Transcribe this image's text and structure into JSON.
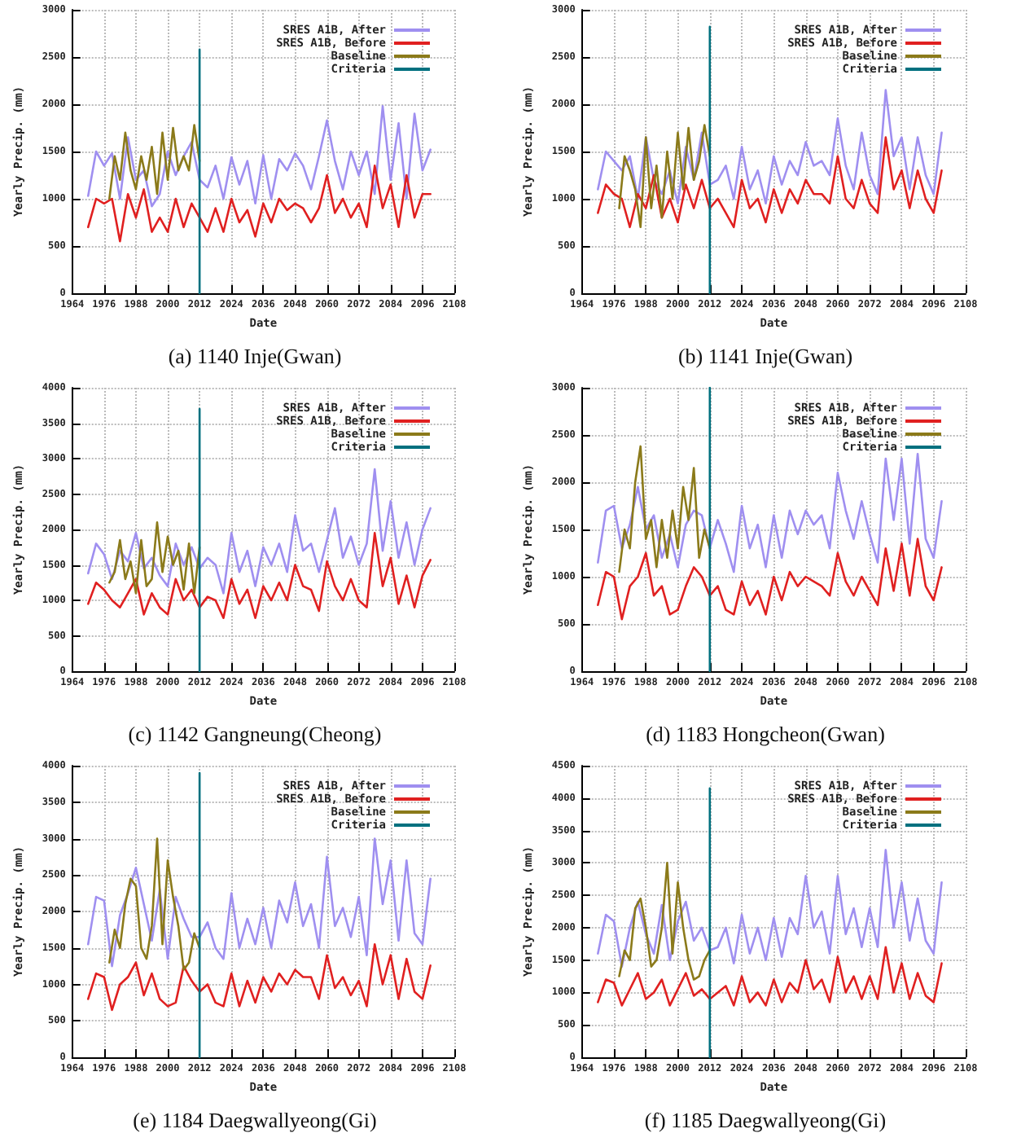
{
  "chart_data": [
    {
      "type": "line",
      "title": "(a) 1140 Inje(Gwan)",
      "xlabel": "Date",
      "ylabel": "Yearly Precip. (mm)",
      "xlim": [
        1964,
        2108
      ],
      "xticks": [
        1964,
        1976,
        1988,
        2000,
        2012,
        2024,
        2036,
        2048,
        2060,
        2072,
        2084,
        2096,
        2108
      ],
      "ylim": [
        0,
        3000
      ],
      "yticks": [
        0,
        500,
        1000,
        1500,
        2000,
        2500,
        3000
      ],
      "grid": true,
      "legend": "top right",
      "series": [
        {
          "name": "SRES A1B, After",
          "color": "#9f8ff0",
          "x": [
            1970,
            1973,
            1976,
            1979,
            1982,
            1985,
            1988,
            1991,
            1994,
            1997,
            2000,
            2003,
            2006,
            2009,
            2012,
            2015,
            2018,
            2021,
            2024,
            2027,
            2030,
            2033,
            2036,
            2039,
            2042,
            2045,
            2048,
            2051,
            2054,
            2057,
            2060,
            2063,
            2066,
            2069,
            2072,
            2075,
            2078,
            2081,
            2084,
            2087,
            2090,
            2093,
            2096,
            2099
          ],
          "values": [
            1030,
            1500,
            1350,
            1480,
            1000,
            1650,
            1200,
            1300,
            920,
            1050,
            1500,
            1250,
            1450,
            1600,
            1200,
            1120,
            1350,
            1000,
            1440,
            1150,
            1400,
            950,
            1460,
            1000,
            1420,
            1300,
            1480,
            1350,
            1100,
            1450,
            1830,
            1400,
            1100,
            1500,
            1250,
            1500,
            1050,
            1980,
            1200,
            1800,
            1000,
            1900,
            1300,
            1520
          ]
        },
        {
          "name": "SRES A1B, Before",
          "color": "#e02020",
          "x": [
            1970,
            1973,
            1976,
            1979,
            1982,
            1985,
            1988,
            1991,
            1994,
            1997,
            2000,
            2003,
            2006,
            2009,
            2012,
            2015,
            2018,
            2021,
            2024,
            2027,
            2030,
            2033,
            2036,
            2039,
            2042,
            2045,
            2048,
            2051,
            2054,
            2057,
            2060,
            2063,
            2066,
            2069,
            2072,
            2075,
            2078,
            2081,
            2084,
            2087,
            2090,
            2093,
            2096,
            2099
          ],
          "values": [
            700,
            1000,
            950,
            1000,
            550,
            1050,
            800,
            1100,
            650,
            800,
            650,
            1000,
            700,
            950,
            800,
            650,
            900,
            650,
            1000,
            750,
            880,
            600,
            950,
            750,
            1000,
            880,
            950,
            900,
            750,
            900,
            1250,
            850,
            1000,
            800,
            950,
            700,
            1350,
            900,
            1150,
            700,
            1250,
            800,
            1050,
            1050
          ]
        },
        {
          "name": "Baseline",
          "color": "#8b7a1a",
          "x": [
            1978,
            1980,
            1982,
            1984,
            1986,
            1988,
            1990,
            1992,
            1994,
            1996,
            1998,
            2000,
            2002,
            2004,
            2006,
            2008,
            2010,
            2012
          ],
          "values": [
            1000,
            1450,
            1200,
            1700,
            1300,
            1100,
            1450,
            1200,
            1550,
            1050,
            1700,
            1200,
            1750,
            1300,
            1450,
            1300,
            1780,
            1400
          ]
        },
        {
          "name": "Criteria",
          "color": "#00707f",
          "x": [
            2012,
            2012
          ],
          "values": [
            0,
            2580
          ]
        }
      ]
    },
    {
      "type": "line",
      "title": "(b) 1141 Inje(Gwan)",
      "xlabel": "Date",
      "ylabel": "Yearly Precip. (mm)",
      "xlim": [
        1964,
        2108
      ],
      "xticks": [
        1964,
        1976,
        1988,
        2000,
        2012,
        2024,
        2036,
        2048,
        2060,
        2072,
        2084,
        2096,
        2108
      ],
      "ylim": [
        0,
        3000
      ],
      "yticks": [
        0,
        500,
        1000,
        1500,
        2000,
        2500,
        3000
      ],
      "grid": true,
      "legend": "top right",
      "series": [
        {
          "name": "SRES A1B, After",
          "color": "#9f8ff0",
          "x": [
            1970,
            1973,
            1976,
            1979,
            1982,
            1985,
            1988,
            1991,
            1994,
            1997,
            2000,
            2003,
            2006,
            2009,
            2012,
            2015,
            2018,
            2021,
            2024,
            2027,
            2030,
            2033,
            2036,
            2039,
            2042,
            2045,
            2048,
            2051,
            2054,
            2057,
            2060,
            2063,
            2066,
            2069,
            2072,
            2075,
            2078,
            2081,
            2084,
            2087,
            2090,
            2093,
            2096,
            2099
          ],
          "values": [
            1100,
            1500,
            1400,
            1300,
            1450,
            1000,
            1650,
            1200,
            1050,
            1300,
            950,
            1550,
            1200,
            1700,
            1150,
            1200,
            1350,
            1000,
            1550,
            1100,
            1300,
            950,
            1450,
            1150,
            1400,
            1250,
            1600,
            1350,
            1400,
            1250,
            1850,
            1350,
            1100,
            1700,
            1250,
            1050,
            2150,
            1450,
            1650,
            1100,
            1650,
            1250,
            1050,
            1700
          ]
        },
        {
          "name": "SRES A1B, Before",
          "color": "#e02020",
          "x": [
            1970,
            1973,
            1976,
            1979,
            1982,
            1985,
            1988,
            1991,
            1994,
            1997,
            2000,
            2003,
            2006,
            2009,
            2012,
            2015,
            2018,
            2021,
            2024,
            2027,
            2030,
            2033,
            2036,
            2039,
            2042,
            2045,
            2048,
            2051,
            2054,
            2057,
            2060,
            2063,
            2066,
            2069,
            2072,
            2075,
            2078,
            2081,
            2084,
            2087,
            2090,
            2093,
            2096,
            2099
          ],
          "values": [
            850,
            1150,
            1050,
            1000,
            700,
            1050,
            900,
            1250,
            800,
            1000,
            750,
            1150,
            900,
            1200,
            900,
            1000,
            850,
            700,
            1200,
            900,
            1000,
            750,
            1100,
            850,
            1100,
            950,
            1200,
            1050,
            1050,
            950,
            1450,
            1000,
            900,
            1200,
            950,
            850,
            1650,
            1100,
            1300,
            900,
            1300,
            1000,
            850,
            1300
          ]
        },
        {
          "name": "Baseline",
          "color": "#8b7a1a",
          "x": [
            1978,
            1980,
            1982,
            1984,
            1986,
            1988,
            1990,
            1992,
            1994,
            1996,
            1998,
            2000,
            2002,
            2004,
            2006,
            2008,
            2010,
            2012
          ],
          "values": [
            900,
            1450,
            1300,
            1100,
            700,
            1650,
            900,
            1350,
            800,
            1500,
            1000,
            1700,
            1100,
            1750,
            1200,
            1400,
            1780,
            1450
          ]
        },
        {
          "name": "Criteria",
          "color": "#00707f",
          "x": [
            2012,
            2012
          ],
          "values": [
            0,
            2820
          ]
        }
      ]
    },
    {
      "type": "line",
      "title": "(c) 1142 Gangneung(Cheong)",
      "xlabel": "Date",
      "ylabel": "Yearly Precip. (mm)",
      "xlim": [
        1964,
        2108
      ],
      "xticks": [
        1964,
        1976,
        1988,
        2000,
        2012,
        2024,
        2036,
        2048,
        2060,
        2072,
        2084,
        2096,
        2108
      ],
      "ylim": [
        0,
        4000
      ],
      "yticks": [
        0,
        500,
        1000,
        1500,
        2000,
        2500,
        3000,
        3500,
        4000
      ],
      "grid": true,
      "legend": "top right",
      "series": [
        {
          "name": "SRES A1B, After",
          "color": "#9f8ff0",
          "x": [
            1970,
            1973,
            1976,
            1979,
            1982,
            1985,
            1988,
            1991,
            1994,
            1997,
            2000,
            2003,
            2006,
            2009,
            2012,
            2015,
            2018,
            2021,
            2024,
            2027,
            2030,
            2033,
            2036,
            2039,
            2042,
            2045,
            2048,
            2051,
            2054,
            2057,
            2060,
            2063,
            2066,
            2069,
            2072,
            2075,
            2078,
            2081,
            2084,
            2087,
            2090,
            2093,
            2096,
            2099
          ],
          "values": [
            1380,
            1800,
            1650,
            1300,
            1700,
            1550,
            1950,
            1450,
            1600,
            1350,
            1200,
            1800,
            1500,
            1750,
            1450,
            1600,
            1500,
            1100,
            1950,
            1400,
            1700,
            1200,
            1750,
            1500,
            1800,
            1400,
            2200,
            1700,
            1800,
            1400,
            1850,
            2300,
            1600,
            1900,
            1500,
            1800,
            2850,
            1700,
            2400,
            1600,
            2100,
            1500,
            2000,
            2300
          ]
        },
        {
          "name": "SRES A1B, Before",
          "color": "#e02020",
          "x": [
            1970,
            1973,
            1976,
            1979,
            1982,
            1985,
            1988,
            1991,
            1994,
            1997,
            2000,
            2003,
            2006,
            2009,
            2012,
            2015,
            2018,
            2021,
            2024,
            2027,
            2030,
            2033,
            2036,
            2039,
            2042,
            2045,
            2048,
            2051,
            2054,
            2057,
            2060,
            2063,
            2066,
            2069,
            2072,
            2075,
            2078,
            2081,
            2084,
            2087,
            2090,
            2093,
            2096,
            2099
          ],
          "values": [
            950,
            1250,
            1150,
            1000,
            900,
            1100,
            1300,
            800,
            1100,
            900,
            800,
            1300,
            1000,
            1150,
            900,
            1050,
            1000,
            750,
            1300,
            950,
            1150,
            750,
            1200,
            1000,
            1250,
            1000,
            1500,
            1200,
            1150,
            850,
            1550,
            1200,
            1000,
            1300,
            1000,
            900,
            1950,
            1200,
            1600,
            950,
            1350,
            900,
            1350,
            1570
          ]
        },
        {
          "name": "Baseline",
          "color": "#8b7a1a",
          "x": [
            1978,
            1980,
            1982,
            1984,
            1986,
            1988,
            1990,
            1992,
            1994,
            1996,
            1998,
            2000,
            2002,
            2004,
            2006,
            2008,
            2010,
            2012
          ],
          "values": [
            1250,
            1400,
            1850,
            1300,
            1550,
            1100,
            1850,
            1200,
            1300,
            2100,
            1400,
            1900,
            1500,
            1700,
            1150,
            1800,
            1100,
            1750
          ]
        },
        {
          "name": "Criteria",
          "color": "#00707f",
          "x": [
            2012,
            2012
          ],
          "values": [
            0,
            3700
          ]
        }
      ]
    },
    {
      "type": "line",
      "title": "(d) 1183 Hongcheon(Gwan)",
      "xlabel": "Date",
      "ylabel": "Yearly Precip. (mm)",
      "xlim": [
        1964,
        2108
      ],
      "xticks": [
        1964,
        1976,
        1988,
        2000,
        2012,
        2024,
        2036,
        2048,
        2060,
        2072,
        2084,
        2096,
        2108
      ],
      "ylim": [
        0,
        3000
      ],
      "yticks": [
        0,
        500,
        1000,
        1500,
        2000,
        2500,
        3000
      ],
      "grid": true,
      "legend": "top right",
      "series": [
        {
          "name": "SRES A1B, After",
          "color": "#9f8ff0",
          "x": [
            1970,
            1973,
            1976,
            1979,
            1982,
            1985,
            1988,
            1991,
            1994,
            1997,
            2000,
            2003,
            2006,
            2009,
            2012,
            2015,
            2018,
            2021,
            2024,
            2027,
            2030,
            2033,
            2036,
            2039,
            2042,
            2045,
            2048,
            2051,
            2054,
            2057,
            2060,
            2063,
            2066,
            2069,
            2072,
            2075,
            2078,
            2081,
            2084,
            2087,
            2090,
            2093,
            2096,
            2099
          ],
          "values": [
            1150,
            1700,
            1750,
            1300,
            1550,
            1950,
            1500,
            1650,
            1200,
            1450,
            1100,
            1550,
            1700,
            1650,
            1300,
            1600,
            1350,
            1050,
            1750,
            1300,
            1550,
            1100,
            1650,
            1200,
            1700,
            1450,
            1700,
            1550,
            1650,
            1300,
            2100,
            1700,
            1400,
            1800,
            1450,
            1150,
            2250,
            1600,
            2250,
            1350,
            2300,
            1400,
            1200,
            1800
          ]
        },
        {
          "name": "SRES A1B, Before",
          "color": "#e02020",
          "x": [
            1970,
            1973,
            1976,
            1979,
            1982,
            1985,
            1988,
            1991,
            1994,
            1997,
            2000,
            2003,
            2006,
            2009,
            2012,
            2015,
            2018,
            2021,
            2024,
            2027,
            2030,
            2033,
            2036,
            2039,
            2042,
            2045,
            2048,
            2051,
            2054,
            2057,
            2060,
            2063,
            2066,
            2069,
            2072,
            2075,
            2078,
            2081,
            2084,
            2087,
            2090,
            2093,
            2096,
            2099
          ],
          "values": [
            700,
            1050,
            1000,
            550,
            900,
            1000,
            1250,
            800,
            900,
            600,
            650,
            900,
            1100,
            1000,
            800,
            900,
            650,
            600,
            950,
            700,
            850,
            600,
            1000,
            750,
            1050,
            900,
            1000,
            950,
            900,
            800,
            1250,
            950,
            800,
            1000,
            850,
            700,
            1300,
            850,
            1350,
            800,
            1400,
            900,
            750,
            1100
          ]
        },
        {
          "name": "Baseline",
          "color": "#8b7a1a",
          "x": [
            1978,
            1980,
            1982,
            1984,
            1986,
            1988,
            1990,
            1992,
            1994,
            1996,
            1998,
            2000,
            2002,
            2004,
            2006,
            2008,
            2010,
            2012
          ],
          "values": [
            1050,
            1500,
            1300,
            2000,
            2380,
            1400,
            1600,
            1100,
            1600,
            1200,
            1700,
            1300,
            1950,
            1600,
            2150,
            1200,
            1500,
            1300
          ]
        },
        {
          "name": "Criteria",
          "color": "#00707f",
          "x": [
            2012,
            2012
          ],
          "values": [
            0,
            3000
          ]
        }
      ]
    },
    {
      "type": "line",
      "title": "(e) 1184 Daegwallyeong(Gi)",
      "xlabel": "Date",
      "ylabel": "Yearly Precip. (mm)",
      "xlim": [
        1964,
        2108
      ],
      "xticks": [
        1964,
        1976,
        1988,
        2000,
        2012,
        2024,
        2036,
        2048,
        2060,
        2072,
        2084,
        2096,
        2108
      ],
      "ylim": [
        0,
        4000
      ],
      "yticks": [
        0,
        500,
        1000,
        1500,
        2000,
        2500,
        3000,
        3500,
        4000
      ],
      "grid": true,
      "legend": "top right",
      "series": [
        {
          "name": "SRES A1B, After",
          "color": "#9f8ff0",
          "x": [
            1970,
            1973,
            1976,
            1979,
            1982,
            1985,
            1988,
            1991,
            1994,
            1997,
            2000,
            2003,
            2006,
            2009,
            2012,
            2015,
            2018,
            2021,
            2024,
            2027,
            2030,
            2033,
            2036,
            2039,
            2042,
            2045,
            2048,
            2051,
            2054,
            2057,
            2060,
            2063,
            2066,
            2069,
            2072,
            2075,
            2078,
            2081,
            2084,
            2087,
            2090,
            2093,
            2096,
            2099
          ],
          "values": [
            1550,
            2200,
            2150,
            1250,
            1950,
            2250,
            2600,
            2100,
            1600,
            2300,
            1350,
            2200,
            1900,
            1650,
            1650,
            1850,
            1500,
            1350,
            2250,
            1500,
            1900,
            1550,
            2050,
            1500,
            2150,
            1850,
            2400,
            1800,
            2100,
            1500,
            2750,
            1800,
            2050,
            1650,
            2200,
            1400,
            3000,
            2100,
            2700,
            1600,
            2700,
            1700,
            1550,
            2450
          ]
        },
        {
          "name": "SRES A1B, Before",
          "color": "#e02020",
          "x": [
            1970,
            1973,
            1976,
            1979,
            1982,
            1985,
            1988,
            1991,
            1994,
            1997,
            2000,
            2003,
            2006,
            2009,
            2012,
            2015,
            2018,
            2021,
            2024,
            2027,
            2030,
            2033,
            2036,
            2039,
            2042,
            2045,
            2048,
            2051,
            2054,
            2057,
            2060,
            2063,
            2066,
            2069,
            2072,
            2075,
            2078,
            2081,
            2084,
            2087,
            2090,
            2093,
            2096,
            2099
          ],
          "values": [
            800,
            1150,
            1100,
            650,
            1000,
            1100,
            1300,
            850,
            1150,
            800,
            700,
            750,
            1250,
            1050,
            900,
            1000,
            750,
            700,
            1150,
            700,
            1050,
            750,
            1100,
            900,
            1150,
            1000,
            1200,
            1100,
            1100,
            800,
            1400,
            950,
            1100,
            850,
            1050,
            700,
            1550,
            1000,
            1400,
            800,
            1350,
            900,
            800,
            1260
          ]
        },
        {
          "name": "Baseline",
          "color": "#8b7a1a",
          "x": [
            1978,
            1980,
            1982,
            1984,
            1986,
            1988,
            1990,
            1992,
            1994,
            1996,
            1998,
            2000,
            2002,
            2004,
            2006,
            2008,
            2010,
            2012
          ],
          "values": [
            1300,
            1750,
            1500,
            2100,
            2450,
            2350,
            1500,
            1350,
            1800,
            3000,
            1550,
            2700,
            2200,
            1800,
            1200,
            1300,
            1700,
            1500
          ]
        },
        {
          "name": "Criteria",
          "color": "#00707f",
          "x": [
            2012,
            2012
          ],
          "values": [
            0,
            3900
          ]
        }
      ]
    },
    {
      "type": "line",
      "title": "(f) 1185 Daegwallyeong(Gi)",
      "xlabel": "Date",
      "ylabel": "Yearly Precip. (mm)",
      "xlim": [
        1964,
        2108
      ],
      "xticks": [
        1964,
        1976,
        1988,
        2000,
        2012,
        2024,
        2036,
        2048,
        2060,
        2072,
        2084,
        2096,
        2108
      ],
      "ylim": [
        0,
        4500
      ],
      "yticks": [
        0,
        500,
        1000,
        1500,
        2000,
        2500,
        3000,
        3500,
        4000,
        4500
      ],
      "grid": true,
      "legend": "top right",
      "series": [
        {
          "name": "SRES A1B, After",
          "color": "#9f8ff0",
          "x": [
            1970,
            1973,
            1976,
            1979,
            1982,
            1985,
            1988,
            1991,
            1994,
            1997,
            2000,
            2003,
            2006,
            2009,
            2012,
            2015,
            2018,
            2021,
            2024,
            2027,
            2030,
            2033,
            2036,
            2039,
            2042,
            2045,
            2048,
            2051,
            2054,
            2057,
            2060,
            2063,
            2066,
            2069,
            2072,
            2075,
            2078,
            2081,
            2084,
            2087,
            2090,
            2093,
            2096,
            2099
          ],
          "values": [
            1600,
            2200,
            2100,
            1400,
            2000,
            2400,
            1900,
            1600,
            2350,
            1500,
            2100,
            2400,
            1800,
            2000,
            1650,
            1700,
            2000,
            1450,
            2200,
            1600,
            2000,
            1500,
            2150,
            1550,
            2150,
            1900,
            2800,
            2000,
            2250,
            1600,
            2800,
            1900,
            2300,
            1700,
            2300,
            1700,
            3200,
            2000,
            2700,
            1800,
            2450,
            1800,
            1600,
            2700
          ]
        },
        {
          "name": "SRES A1B, Before",
          "color": "#e02020",
          "x": [
            1970,
            1973,
            1976,
            1979,
            1982,
            1985,
            1988,
            1991,
            1994,
            1997,
            2000,
            2003,
            2006,
            2009,
            2012,
            2015,
            2018,
            2021,
            2024,
            2027,
            2030,
            2033,
            2036,
            2039,
            2042,
            2045,
            2048,
            2051,
            2054,
            2057,
            2060,
            2063,
            2066,
            2069,
            2072,
            2075,
            2078,
            2081,
            2084,
            2087,
            2090,
            2093,
            2096,
            2099
          ],
          "values": [
            850,
            1200,
            1150,
            800,
            1050,
            1300,
            900,
            1000,
            1200,
            800,
            1050,
            1300,
            950,
            1050,
            900,
            1000,
            1100,
            800,
            1250,
            850,
            1000,
            800,
            1200,
            850,
            1150,
            1000,
            1500,
            1050,
            1200,
            850,
            1550,
            1000,
            1250,
            900,
            1250,
            900,
            1700,
            1000,
            1450,
            900,
            1300,
            950,
            850,
            1450
          ]
        },
        {
          "name": "Baseline",
          "color": "#8b7a1a",
          "x": [
            1978,
            1980,
            1982,
            1984,
            1986,
            1988,
            1990,
            1992,
            1994,
            1996,
            1998,
            2000,
            2002,
            2004,
            2006,
            2008,
            2010,
            2012
          ],
          "values": [
            1250,
            1650,
            1500,
            2300,
            2450,
            2000,
            1400,
            1500,
            2000,
            3000,
            1600,
            2700,
            2000,
            1500,
            1200,
            1250,
            1500,
            1650
          ]
        },
        {
          "name": "Criteria",
          "color": "#00707f",
          "x": [
            2012,
            2012
          ],
          "values": [
            0,
            4150
          ]
        }
      ]
    }
  ]
}
